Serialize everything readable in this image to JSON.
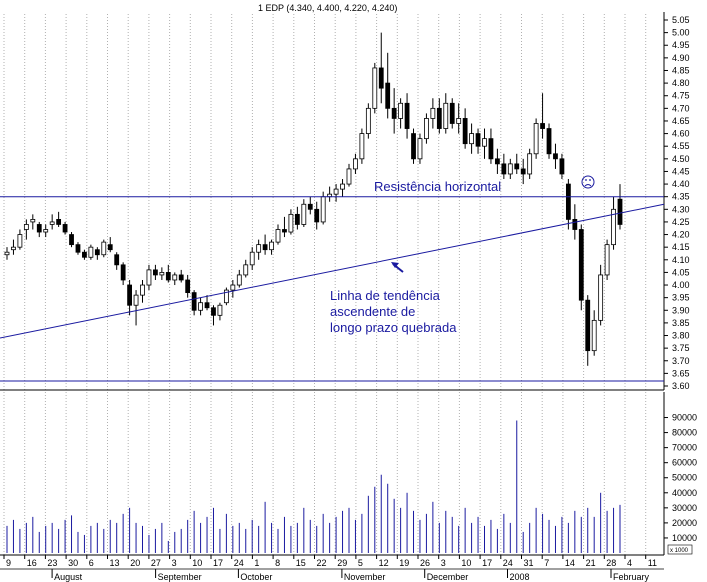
{
  "chart_data": {
    "type": "candlestick",
    "title": "1 EDP (4.340, 4.400, 4.220, 4.240)",
    "price_axis": {
      "ylim": [
        3.6,
        5.05
      ],
      "ticks": [
        "5.05",
        "5.00",
        "4.95",
        "4.90",
        "4.85",
        "4.80",
        "4.75",
        "4.70",
        "4.65",
        "4.60",
        "4.55",
        "4.50",
        "4.45",
        "4.40",
        "4.35",
        "4.30",
        "4.25",
        "4.20",
        "4.15",
        "4.10",
        "4.05",
        "4.00",
        "3.95",
        "3.90",
        "3.85",
        "3.80",
        "3.75",
        "3.70",
        "3.65",
        "3.60"
      ]
    },
    "volume_axis": {
      "ylim": [
        0,
        95000
      ],
      "ticks": [
        "90000",
        "80000",
        "70000",
        "60000",
        "50000",
        "40000",
        "30000",
        "20000",
        "10000"
      ],
      "unit": "x 1000"
    },
    "day_labels": [
      "9",
      "16",
      "23",
      "30",
      "6",
      "13",
      "20",
      "27",
      "3",
      "10",
      "17",
      "24",
      "1",
      "8",
      "15",
      "22",
      "29",
      "5",
      "12",
      "19",
      "26",
      "3",
      "10",
      "17",
      "24",
      "31",
      "7",
      "14",
      "21",
      "28",
      "4",
      "11"
    ],
    "month_labels": [
      "August",
      "September",
      "October",
      "November",
      "December",
      "2008",
      "February"
    ],
    "annotations": {
      "horizontal": "Resistência horizontal",
      "trend_line1": "Linha de tendência",
      "trend_line2": "ascendente de",
      "trend_line3": "longo prazo quebrada"
    },
    "resistance_level": 4.35,
    "support_level": 3.62,
    "trendline": {
      "start_price": 3.79,
      "end_price": 4.32
    },
    "grid": "vertical dotted",
    "colors": {
      "line": "#1a1aa0",
      "up": "#ffffff",
      "down": "#000000",
      "volume": "#1a1aa0"
    },
    "candles": [
      [
        4.12,
        4.15,
        4.1,
        4.13
      ],
      [
        4.14,
        4.18,
        4.12,
        4.15
      ],
      [
        4.15,
        4.22,
        4.14,
        4.2
      ],
      [
        4.22,
        4.26,
        4.18,
        4.24
      ],
      [
        4.25,
        4.28,
        4.22,
        4.26
      ],
      [
        4.24,
        4.25,
        4.19,
        4.21
      ],
      [
        4.21,
        4.24,
        4.19,
        4.22
      ],
      [
        4.24,
        4.28,
        4.22,
        4.25
      ],
      [
        4.26,
        4.29,
        4.23,
        4.24
      ],
      [
        4.24,
        4.25,
        4.2,
        4.21
      ],
      [
        4.2,
        4.21,
        4.15,
        4.16
      ],
      [
        4.16,
        4.17,
        4.12,
        4.13
      ],
      [
        4.13,
        4.14,
        4.1,
        4.11
      ],
      [
        4.11,
        4.16,
        4.1,
        4.15
      ],
      [
        4.14,
        4.15,
        4.1,
        4.12
      ],
      [
        4.12,
        4.18,
        4.11,
        4.17
      ],
      [
        4.16,
        4.19,
        4.13,
        4.14
      ],
      [
        4.12,
        4.13,
        4.06,
        4.08
      ],
      [
        4.08,
        4.09,
        4.0,
        4.02
      ],
      [
        4.0,
        4.02,
        3.88,
        3.92
      ],
      [
        3.92,
        3.98,
        3.84,
        3.96
      ],
      [
        3.96,
        4.02,
        3.93,
        4.0
      ],
      [
        4.0,
        4.08,
        3.98,
        4.06
      ],
      [
        4.06,
        4.08,
        4.02,
        4.04
      ],
      [
        4.04,
        4.07,
        4.02,
        4.05
      ],
      [
        4.05,
        4.08,
        4.01,
        4.02
      ],
      [
        4.02,
        4.05,
        4.0,
        4.04
      ],
      [
        4.04,
        4.06,
        4.01,
        4.02
      ],
      [
        4.02,
        4.04,
        3.95,
        3.97
      ],
      [
        3.97,
        3.98,
        3.88,
        3.9
      ],
      [
        3.9,
        3.95,
        3.88,
        3.93
      ],
      [
        3.93,
        3.96,
        3.9,
        3.91
      ],
      [
        3.91,
        3.92,
        3.84,
        3.88
      ],
      [
        3.88,
        3.93,
        3.86,
        3.92
      ],
      [
        3.93,
        3.99,
        3.92,
        3.98
      ],
      [
        3.98,
        4.02,
        3.95,
        4.0
      ],
      [
        4.0,
        4.06,
        3.99,
        4.04
      ],
      [
        4.04,
        4.1,
        4.03,
        4.08
      ],
      [
        4.08,
        4.15,
        4.06,
        4.13
      ],
      [
        4.13,
        4.18,
        4.1,
        4.16
      ],
      [
        4.16,
        4.2,
        4.12,
        4.14
      ],
      [
        4.14,
        4.18,
        4.12,
        4.17
      ],
      [
        4.17,
        4.24,
        4.16,
        4.22
      ],
      [
        4.22,
        4.27,
        4.19,
        4.21
      ],
      [
        4.21,
        4.3,
        4.2,
        4.28
      ],
      [
        4.28,
        4.31,
        4.22,
        4.24
      ],
      [
        4.24,
        4.34,
        4.23,
        4.32
      ],
      [
        4.32,
        4.35,
        4.28,
        4.3
      ],
      [
        4.3,
        4.33,
        4.22,
        4.25
      ],
      [
        4.25,
        4.37,
        4.24,
        4.35
      ],
      [
        4.35,
        4.39,
        4.33,
        4.36
      ],
      [
        4.36,
        4.4,
        4.33,
        4.38
      ],
      [
        4.38,
        4.42,
        4.35,
        4.4
      ],
      [
        4.4,
        4.48,
        4.39,
        4.46
      ],
      [
        4.46,
        4.52,
        4.44,
        4.5
      ],
      [
        4.5,
        4.62,
        4.48,
        4.6
      ],
      [
        4.6,
        4.72,
        4.58,
        4.7
      ],
      [
        4.7,
        4.88,
        4.68,
        4.86
      ],
      [
        4.86,
        5.0,
        4.72,
        4.78
      ],
      [
        4.8,
        4.92,
        4.66,
        4.7
      ],
      [
        4.7,
        4.78,
        4.6,
        4.66
      ],
      [
        4.66,
        4.74,
        4.62,
        4.72
      ],
      [
        4.72,
        4.76,
        4.58,
        4.62
      ],
      [
        4.6,
        4.62,
        4.48,
        4.5
      ],
      [
        4.5,
        4.6,
        4.48,
        4.58
      ],
      [
        4.58,
        4.68,
        4.56,
        4.66
      ],
      [
        4.66,
        4.74,
        4.62,
        4.7
      ],
      [
        4.7,
        4.74,
        4.6,
        4.62
      ],
      [
        4.62,
        4.76,
        4.6,
        4.72
      ],
      [
        4.72,
        4.74,
        4.62,
        4.64
      ],
      [
        4.64,
        4.72,
        4.6,
        4.66
      ],
      [
        4.66,
        4.7,
        4.54,
        4.56
      ],
      [
        4.56,
        4.64,
        4.52,
        4.6
      ],
      [
        4.6,
        4.62,
        4.52,
        4.55
      ],
      [
        4.55,
        4.62,
        4.5,
        4.58
      ],
      [
        4.58,
        4.62,
        4.48,
        4.5
      ],
      [
        4.5,
        4.54,
        4.44,
        4.48
      ],
      [
        4.48,
        4.52,
        4.42,
        4.44
      ],
      [
        4.44,
        4.5,
        4.42,
        4.48
      ],
      [
        4.48,
        4.52,
        4.44,
        4.46
      ],
      [
        4.46,
        4.5,
        4.4,
        4.44
      ],
      [
        4.44,
        4.54,
        4.42,
        4.52
      ],
      [
        4.52,
        4.66,
        4.5,
        4.64
      ],
      [
        4.64,
        4.76,
        4.58,
        4.62
      ],
      [
        4.62,
        4.64,
        4.5,
        4.52
      ],
      [
        4.52,
        4.56,
        4.46,
        4.5
      ],
      [
        4.5,
        4.52,
        4.42,
        4.44
      ],
      [
        4.4,
        4.42,
        4.22,
        4.26
      ],
      [
        4.26,
        4.32,
        4.18,
        4.22
      ],
      [
        4.22,
        4.24,
        3.9,
        3.94
      ],
      [
        3.94,
        3.96,
        3.68,
        3.74
      ],
      [
        3.74,
        3.9,
        3.72,
        3.86
      ],
      [
        3.86,
        4.08,
        3.84,
        4.04
      ],
      [
        4.04,
        4.18,
        4.02,
        4.16
      ],
      [
        4.16,
        4.35,
        4.14,
        4.3
      ],
      [
        4.34,
        4.4,
        4.22,
        4.24
      ]
    ],
    "volume": [
      18000,
      22000,
      16000,
      20000,
      24000,
      14000,
      18000,
      20000,
      16000,
      22000,
      25000,
      14000,
      12000,
      18000,
      20000,
      16000,
      22000,
      20000,
      26000,
      30000,
      20000,
      18000,
      12000,
      16000,
      20000,
      8000,
      14000,
      16000,
      22000,
      28000,
      20000,
      24000,
      30000,
      16000,
      26000,
      18000,
      20000,
      16000,
      22000,
      18000,
      34000,
      20000,
      16000,
      24000,
      18000,
      20000,
      30000,
      22000,
      18000,
      26000,
      20000,
      24000,
      28000,
      30000,
      22000,
      26000,
      38000,
      44000,
      52000,
      46000,
      36000,
      30000,
      40000,
      28000,
      22000,
      26000,
      34000,
      20000,
      28000,
      24000,
      18000,
      30000,
      20000,
      24000,
      18000,
      22000,
      16000,
      26000,
      20000,
      88000,
      14000,
      20000,
      30000,
      26000,
      22000,
      18000,
      24000,
      20000,
      28000,
      24000,
      30000,
      24000,
      40000,
      28000,
      30000,
      32000
    ]
  }
}
